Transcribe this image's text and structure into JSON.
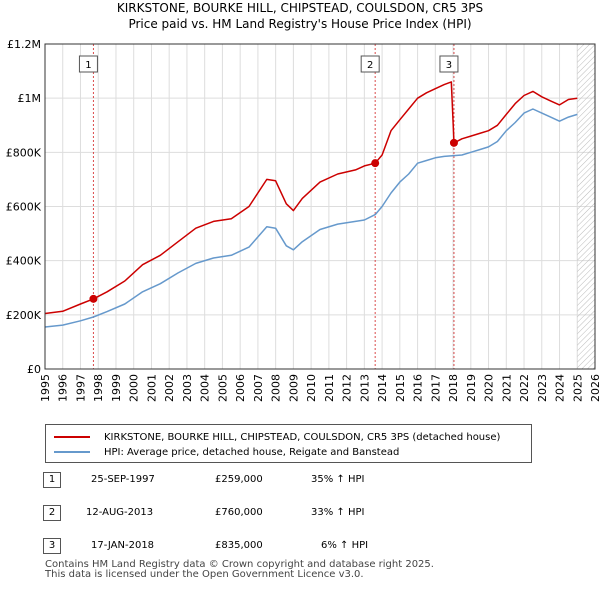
{
  "title_line1": "KIRKSTONE, BOURKE HILL, CHIPSTEAD, COULSDON, CR5 3PS",
  "title_line2": "Price paid vs. HM Land Registry's House Price Index (HPI)",
  "colors": {
    "price": "#cc0000",
    "hpi": "#6699cc",
    "marker_line": "#cc0000",
    "future_hatch": "#aaaaaa"
  },
  "chart_data": {
    "type": "line",
    "xlim": [
      1995,
      2026
    ],
    "ylim": [
      0,
      1200000
    ],
    "x_ticks": [
      "1995",
      "1996",
      "1997",
      "1998",
      "1999",
      "2000",
      "2001",
      "2002",
      "2003",
      "2004",
      "2005",
      "2006",
      "2007",
      "2008",
      "2009",
      "2010",
      "2011",
      "2012",
      "2013",
      "2014",
      "2015",
      "2016",
      "2017",
      "2018",
      "2019",
      "2020",
      "2021",
      "2022",
      "2023",
      "2024",
      "2025",
      "2026"
    ],
    "y_ticks": [
      {
        "value": 0,
        "label": "£0"
      },
      {
        "value": 200000,
        "label": "£200K"
      },
      {
        "value": 400000,
        "label": "£400K"
      },
      {
        "value": 600000,
        "label": "£600K"
      },
      {
        "value": 800000,
        "label": "£800K"
      },
      {
        "value": 1000000,
        "label": "£1M"
      },
      {
        "value": 1200000,
        "label": "£1.2M"
      }
    ],
    "future_from": 2025.0,
    "series": [
      {
        "name": "KIRKSTONE, BOURKE HILL, CHIPSTEAD, COULSDON, CR5 3PS (detached house)",
        "color": "#cc0000",
        "points": [
          [
            1995.0,
            205000
          ],
          [
            1996.0,
            213000
          ],
          [
            1997.0,
            240000
          ],
          [
            1997.73,
            259000
          ],
          [
            1998.5,
            285000
          ],
          [
            1999.5,
            325000
          ],
          [
            2000.5,
            385000
          ],
          [
            2001.5,
            420000
          ],
          [
            2002.5,
            470000
          ],
          [
            2003.5,
            520000
          ],
          [
            2004.5,
            545000
          ],
          [
            2005.5,
            555000
          ],
          [
            2006.5,
            600000
          ],
          [
            2007.5,
            700000
          ],
          [
            2008.0,
            695000
          ],
          [
            2008.6,
            610000
          ],
          [
            2009.0,
            585000
          ],
          [
            2009.5,
            630000
          ],
          [
            2010.5,
            690000
          ],
          [
            2011.5,
            720000
          ],
          [
            2012.5,
            735000
          ],
          [
            2013.0,
            750000
          ],
          [
            2013.61,
            760000
          ],
          [
            2014.0,
            790000
          ],
          [
            2014.5,
            880000
          ],
          [
            2015.0,
            920000
          ],
          [
            2015.5,
            960000
          ],
          [
            2016.0,
            1000000
          ],
          [
            2016.5,
            1020000
          ],
          [
            2017.0,
            1035000
          ],
          [
            2017.5,
            1050000
          ],
          [
            2017.9,
            1060000
          ],
          [
            2018.05,
            835000
          ],
          [
            2018.5,
            850000
          ],
          [
            2019.0,
            860000
          ],
          [
            2019.5,
            870000
          ],
          [
            2020.0,
            880000
          ],
          [
            2020.5,
            900000
          ],
          [
            2021.0,
            940000
          ],
          [
            2021.5,
            980000
          ],
          [
            2022.0,
            1010000
          ],
          [
            2022.5,
            1025000
          ],
          [
            2023.0,
            1005000
          ],
          [
            2023.5,
            990000
          ],
          [
            2024.0,
            975000
          ],
          [
            2024.5,
            995000
          ],
          [
            2025.0,
            1000000
          ]
        ]
      },
      {
        "name": "HPI: Average price, detached house, Reigate and Banstead",
        "color": "#6699cc",
        "points": [
          [
            1995.0,
            155000
          ],
          [
            1996.0,
            162000
          ],
          [
            1997.0,
            178000
          ],
          [
            1997.73,
            192000
          ],
          [
            1998.5,
            212000
          ],
          [
            1999.5,
            240000
          ],
          [
            2000.5,
            285000
          ],
          [
            2001.5,
            315000
          ],
          [
            2002.5,
            355000
          ],
          [
            2003.5,
            390000
          ],
          [
            2004.5,
            410000
          ],
          [
            2005.5,
            420000
          ],
          [
            2006.5,
            450000
          ],
          [
            2007.5,
            525000
          ],
          [
            2008.0,
            520000
          ],
          [
            2008.6,
            455000
          ],
          [
            2009.0,
            440000
          ],
          [
            2009.5,
            470000
          ],
          [
            2010.5,
            515000
          ],
          [
            2011.5,
            535000
          ],
          [
            2012.5,
            545000
          ],
          [
            2013.0,
            550000
          ],
          [
            2013.61,
            570000
          ],
          [
            2014.0,
            600000
          ],
          [
            2014.5,
            650000
          ],
          [
            2015.0,
            690000
          ],
          [
            2015.5,
            720000
          ],
          [
            2016.0,
            760000
          ],
          [
            2016.5,
            770000
          ],
          [
            2017.0,
            780000
          ],
          [
            2017.5,
            785000
          ],
          [
            2018.05,
            788000
          ],
          [
            2018.5,
            790000
          ],
          [
            2019.0,
            800000
          ],
          [
            2019.5,
            810000
          ],
          [
            2020.0,
            820000
          ],
          [
            2020.5,
            840000
          ],
          [
            2021.0,
            880000
          ],
          [
            2021.5,
            910000
          ],
          [
            2022.0,
            945000
          ],
          [
            2022.5,
            960000
          ],
          [
            2023.0,
            945000
          ],
          [
            2023.5,
            930000
          ],
          [
            2024.0,
            915000
          ],
          [
            2024.5,
            930000
          ],
          [
            2025.0,
            940000
          ]
        ]
      }
    ],
    "markers": [
      {
        "label": "1",
        "x": 1997.73,
        "y": 259000
      },
      {
        "label": "2",
        "x": 2013.61,
        "y": 760000
      },
      {
        "label": "3",
        "x": 2018.05,
        "y": 835000
      }
    ]
  },
  "legend": {
    "price_label": "KIRKSTONE, BOURKE HILL, CHIPSTEAD, COULSDON, CR5 3PS (detached house)",
    "hpi_label": "HPI: Average price, detached house, Reigate and Banstead"
  },
  "transactions": [
    {
      "num": "1",
      "date": "25-SEP-1997",
      "price": "£259,000",
      "hpi": "35% ↑ HPI"
    },
    {
      "num": "2",
      "date": "12-AUG-2013",
      "price": "£760,000",
      "hpi": "33% ↑ HPI"
    },
    {
      "num": "3",
      "date": "17-JAN-2018",
      "price": "£835,000",
      "hpi": "6% ↑ HPI"
    }
  ],
  "footer_line1": "Contains HM Land Registry data © Crown copyright and database right 2025.",
  "footer_line2": "This data is licensed under the Open Government Licence v3.0."
}
